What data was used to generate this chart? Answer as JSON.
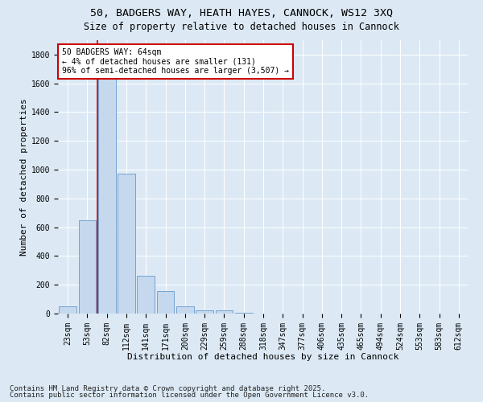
{
  "title1": "50, BADGERS WAY, HEATH HAYES, CANNOCK, WS12 3XQ",
  "title2": "Size of property relative to detached houses in Cannock",
  "xlabel": "Distribution of detached houses by size in Cannock",
  "ylabel": "Number of detached properties",
  "bar_labels": [
    "23sqm",
    "53sqm",
    "82sqm",
    "112sqm",
    "141sqm",
    "171sqm",
    "200sqm",
    "229sqm",
    "259sqm",
    "288sqm",
    "318sqm",
    "347sqm",
    "377sqm",
    "406sqm",
    "435sqm",
    "465sqm",
    "494sqm",
    "524sqm",
    "553sqm",
    "583sqm",
    "612sqm"
  ],
  "bar_values": [
    50,
    650,
    1650,
    970,
    265,
    155,
    50,
    25,
    20,
    8,
    2,
    1,
    0,
    0,
    0,
    0,
    0,
    0,
    0,
    0,
    0
  ],
  "bar_color": "#c5d8ed",
  "bar_edge_color": "#6699cc",
  "annotation_text": "50 BADGERS WAY: 64sqm\n← 4% of detached houses are smaller (131)\n96% of semi-detached houses are larger (3,507) →",
  "annotation_box_color": "#ffffff",
  "annotation_box_edge_color": "#cc0000",
  "red_line_color": "#cc0000",
  "ylim": [
    0,
    1900
  ],
  "yticks": [
    0,
    200,
    400,
    600,
    800,
    1000,
    1200,
    1400,
    1600,
    1800
  ],
  "bg_color": "#dce9f5",
  "plot_bg_color": "#dce9f5",
  "footer1": "Contains HM Land Registry data © Crown copyright and database right 2025.",
  "footer2": "Contains public sector information licensed under the Open Government Licence v3.0.",
  "title_fontsize": 9.5,
  "title2_fontsize": 8.5,
  "axis_label_fontsize": 8,
  "tick_fontsize": 7,
  "annot_fontsize": 7,
  "footer_fontsize": 6.5
}
